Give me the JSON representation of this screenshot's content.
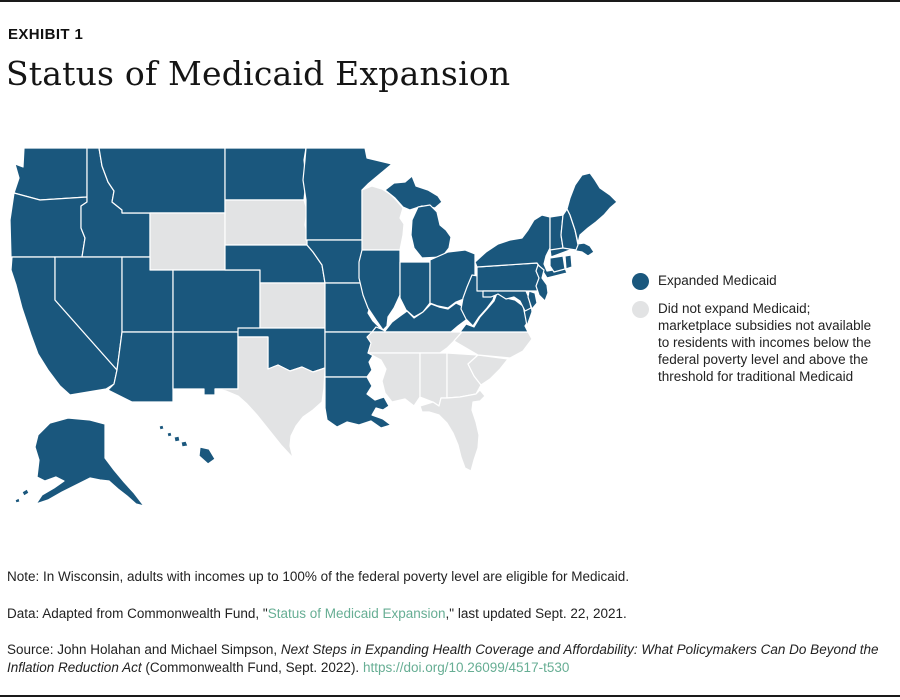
{
  "header": {
    "exhibit_label": "EXHIBIT 1",
    "title": "Status of Medicaid Expansion"
  },
  "colors": {
    "expanded": "#1A577D",
    "not_expanded": "#E2E3E4",
    "state_border": "#FFFFFF",
    "link": "#67AE94",
    "rule": "#1A1A1A",
    "text": "#222222"
  },
  "legend": {
    "items": [
      {
        "label": "Expanded Medicaid",
        "status": "expanded",
        "color": "#1A577D"
      },
      {
        "label": "Did not expand Medicaid; marketplace subsidies not available to residents with incomes below the federal poverty level and above the threshold for traditional Medicaid",
        "status": "not_expanded",
        "color": "#E2E3E4"
      }
    ]
  },
  "map": {
    "states": [
      {
        "id": "WA",
        "name": "Washington",
        "status": "expanded"
      },
      {
        "id": "OR",
        "name": "Oregon",
        "status": "expanded"
      },
      {
        "id": "CA",
        "name": "California",
        "status": "expanded"
      },
      {
        "id": "ID",
        "name": "Idaho",
        "status": "expanded"
      },
      {
        "id": "NV",
        "name": "Nevada",
        "status": "expanded"
      },
      {
        "id": "MT",
        "name": "Montana",
        "status": "expanded"
      },
      {
        "id": "WY",
        "name": "Wyoming",
        "status": "not_expanded"
      },
      {
        "id": "UT",
        "name": "Utah",
        "status": "expanded"
      },
      {
        "id": "AZ",
        "name": "Arizona",
        "status": "expanded"
      },
      {
        "id": "CO",
        "name": "Colorado",
        "status": "expanded"
      },
      {
        "id": "NM",
        "name": "New Mexico",
        "status": "expanded"
      },
      {
        "id": "ND",
        "name": "North Dakota",
        "status": "expanded"
      },
      {
        "id": "SD",
        "name": "South Dakota",
        "status": "not_expanded"
      },
      {
        "id": "NE",
        "name": "Nebraska",
        "status": "expanded"
      },
      {
        "id": "KS",
        "name": "Kansas",
        "status": "not_expanded"
      },
      {
        "id": "OK",
        "name": "Oklahoma",
        "status": "expanded"
      },
      {
        "id": "TX",
        "name": "Texas",
        "status": "not_expanded"
      },
      {
        "id": "MN",
        "name": "Minnesota",
        "status": "expanded"
      },
      {
        "id": "IA",
        "name": "Iowa",
        "status": "expanded"
      },
      {
        "id": "MO",
        "name": "Missouri",
        "status": "expanded"
      },
      {
        "id": "AR",
        "name": "Arkansas",
        "status": "expanded"
      },
      {
        "id": "LA",
        "name": "Louisiana",
        "status": "expanded"
      },
      {
        "id": "WI",
        "name": "Wisconsin",
        "status": "not_expanded"
      },
      {
        "id": "IL",
        "name": "Illinois",
        "status": "expanded"
      },
      {
        "id": "MI",
        "name": "Michigan",
        "status": "expanded"
      },
      {
        "id": "IN",
        "name": "Indiana",
        "status": "expanded"
      },
      {
        "id": "OH",
        "name": "Ohio",
        "status": "expanded"
      },
      {
        "id": "KY",
        "name": "Kentucky",
        "status": "expanded"
      },
      {
        "id": "TN",
        "name": "Tennessee",
        "status": "not_expanded"
      },
      {
        "id": "MS",
        "name": "Mississippi",
        "status": "not_expanded"
      },
      {
        "id": "AL",
        "name": "Alabama",
        "status": "not_expanded"
      },
      {
        "id": "GA",
        "name": "Georgia",
        "status": "not_expanded"
      },
      {
        "id": "FL",
        "name": "Florida",
        "status": "not_expanded"
      },
      {
        "id": "SC",
        "name": "South Carolina",
        "status": "not_expanded"
      },
      {
        "id": "NC",
        "name": "North Carolina",
        "status": "not_expanded"
      },
      {
        "id": "VA",
        "name": "Virginia",
        "status": "expanded"
      },
      {
        "id": "WV",
        "name": "West Virginia",
        "status": "expanded"
      },
      {
        "id": "PA",
        "name": "Pennsylvania",
        "status": "expanded"
      },
      {
        "id": "NY",
        "name": "New York",
        "status": "expanded"
      },
      {
        "id": "NJ",
        "name": "New Jersey",
        "status": "expanded"
      },
      {
        "id": "MD",
        "name": "Maryland",
        "status": "expanded"
      },
      {
        "id": "DE",
        "name": "Delaware",
        "status": "expanded"
      },
      {
        "id": "CT",
        "name": "Connecticut",
        "status": "expanded"
      },
      {
        "id": "RI",
        "name": "Rhode Island",
        "status": "expanded"
      },
      {
        "id": "MA",
        "name": "Massachusetts",
        "status": "expanded"
      },
      {
        "id": "VT",
        "name": "Vermont",
        "status": "expanded"
      },
      {
        "id": "NH",
        "name": "New Hampshire",
        "status": "expanded"
      },
      {
        "id": "ME",
        "name": "Maine",
        "status": "expanded"
      },
      {
        "id": "AK",
        "name": "Alaska",
        "status": "expanded"
      },
      {
        "id": "HI",
        "name": "Hawaii",
        "status": "expanded"
      }
    ]
  },
  "notes": {
    "note": "Note: In Wisconsin, adults with incomes up to 100% of the federal poverty level are eligible for Medicaid.",
    "data_prefix": "Data: Adapted from Commonwealth Fund, \"",
    "data_link": "Status of Medicaid Expansion",
    "data_suffix": ",\" last updated Sept. 22, 2021.",
    "source_prefix": "Source: John Holahan and Michael Simpson, ",
    "source_italic": "Next Steps in Expanding Health Coverage and Affordability: What Policymakers Can Do Beyond the Inflation Reduction Act",
    "source_mid": " (Commonwealth Fund, Sept. 2022). ",
    "source_link": "https://doi.org/10.26099/4517-t530"
  }
}
